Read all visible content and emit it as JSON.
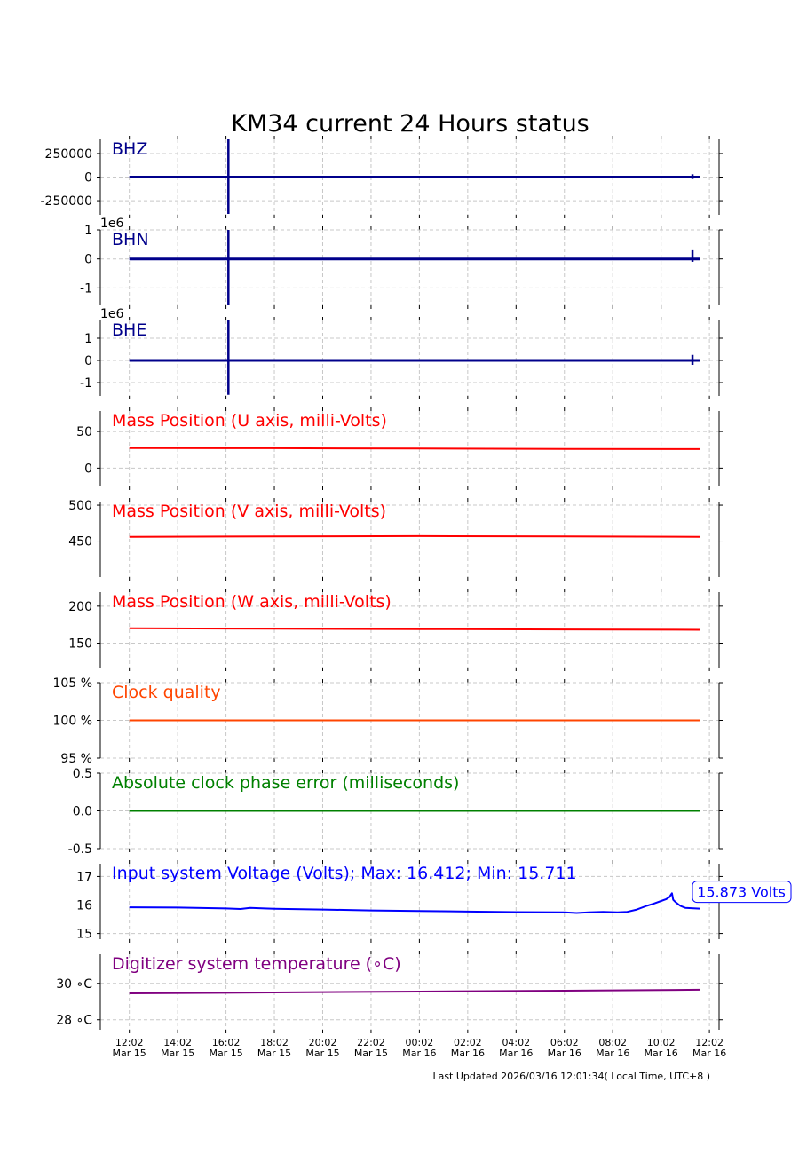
{
  "chart_data": {
    "type": "line",
    "title": "KM34 current 24 Hours status",
    "x_tick_labels": [
      [
        "12:02",
        "Mar 15"
      ],
      [
        "14:02",
        "Mar 15"
      ],
      [
        "16:02",
        "Mar 15"
      ],
      [
        "18:02",
        "Mar 15"
      ],
      [
        "20:02",
        "Mar 15"
      ],
      [
        "22:02",
        "Mar 15"
      ],
      [
        "00:02",
        "Mar 16"
      ],
      [
        "02:02",
        "Mar 16"
      ],
      [
        "04:02",
        "Mar 16"
      ],
      [
        "06:02",
        "Mar 16"
      ],
      [
        "08:02",
        "Mar 16"
      ],
      [
        "10:02",
        "Mar 16"
      ],
      [
        "12:02",
        "Mar 16"
      ]
    ],
    "x_range_hours": [
      -1.2,
      24.4
    ],
    "x_data_end_hours": 23.6,
    "panels": [
      {
        "label": "BHZ",
        "color": "#00008b",
        "ylim": [
          -400000,
          400000
        ],
        "yticks": [
          250000,
          0,
          -250000
        ],
        "ytick_labels": [
          "250000",
          "0",
          "-250000"
        ],
        "offset_text": "",
        "baseline": 0,
        "spikes": [
          {
            "t": 4.1,
            "min": -390000,
            "max": 400000
          },
          {
            "t": 23.3,
            "min": -20000,
            "max": 30000
          }
        ]
      },
      {
        "label": "BHN",
        "color": "#00008b",
        "ylim": [
          -1.6,
          1.0
        ],
        "yticks": [
          1,
          0,
          -1
        ],
        "ytick_labels": [
          "1",
          "0",
          "-1"
        ],
        "offset_text": "1e6",
        "baseline": 0,
        "spikes": [
          {
            "t": 4.1,
            "min": -1.6,
            "max": 1.0
          },
          {
            "t": 23.3,
            "min": -0.1,
            "max": 0.3
          }
        ]
      },
      {
        "label": "BHE",
        "color": "#00008b",
        "ylim": [
          -1.6,
          1.8
        ],
        "yticks": [
          1,
          0,
          -1
        ],
        "ytick_labels": [
          "1",
          "0",
          "-1"
        ],
        "offset_text": "1e6",
        "baseline": 0,
        "spikes": [
          {
            "t": 4.1,
            "min": -1.55,
            "max": 1.8
          },
          {
            "t": 23.3,
            "min": -0.2,
            "max": 0.25
          }
        ]
      },
      {
        "label": "Mass Position (U axis, milli-Volts)",
        "color": "#ff0000",
        "ylim": [
          -25,
          78
        ],
        "yticks": [
          50,
          0
        ],
        "ytick_labels": [
          "50",
          "0"
        ],
        "offset_text": "",
        "series": [
          [
            0,
            27.5
          ],
          [
            6,
            27.2
          ],
          [
            12,
            26.8
          ],
          [
            18,
            26.3
          ],
          [
            23.6,
            26.0
          ]
        ]
      },
      {
        "label": "Mass Position (V axis, milli-Volts)",
        "color": "#ff0000",
        "ylim": [
          400,
          505
        ],
        "yticks": [
          500,
          450
        ],
        "ytick_labels": [
          "500",
          "450"
        ],
        "offset_text": "",
        "series": [
          [
            0,
            456
          ],
          [
            6,
            456.5
          ],
          [
            12,
            457
          ],
          [
            18,
            456.5
          ],
          [
            23.6,
            456
          ]
        ]
      },
      {
        "label": "Mass Position (W axis, milli-Volts)",
        "color": "#ff0000",
        "ylim": [
          117,
          219
        ],
        "yticks": [
          200,
          150
        ],
        "ytick_labels": [
          "200",
          "150"
        ],
        "offset_text": "",
        "series": [
          [
            0,
            170
          ],
          [
            6,
            169.5
          ],
          [
            12,
            169
          ],
          [
            18,
            168.5
          ],
          [
            23.6,
            168
          ]
        ]
      },
      {
        "label": "Clock quality",
        "color": "#ff4500",
        "ylim": [
          95,
          105
        ],
        "yticks": [
          105,
          100,
          95
        ],
        "ytick_labels": [
          "105 %",
          "100 %",
          "95 %"
        ],
        "offset_text": "",
        "series": [
          [
            0,
            100
          ],
          [
            23.6,
            100
          ]
        ]
      },
      {
        "label": "Absolute clock phase error (milliseconds)",
        "color": "#008000",
        "ylim": [
          -0.5,
          0.5
        ],
        "yticks": [
          0.5,
          0.0,
          -0.5
        ],
        "ytick_labels": [
          "0.5",
          "0.0",
          "-0.5"
        ],
        "offset_text": "",
        "series": [
          [
            0,
            0
          ],
          [
            23.6,
            0
          ]
        ]
      },
      {
        "label": "Input system Voltage (Volts);    Max: 16.412; Min: 15.711",
        "color": "#0000ff",
        "ylim": [
          14.8,
          17.45
        ],
        "yticks": [
          17,
          16,
          15
        ],
        "ytick_labels": [
          "17",
          "16",
          "15"
        ],
        "offset_text": "",
        "annotation": "15.873 Volts",
        "series": [
          [
            0,
            15.92
          ],
          [
            2,
            15.91
          ],
          [
            4,
            15.88
          ],
          [
            4.6,
            15.86
          ],
          [
            5,
            15.9
          ],
          [
            5.6,
            15.88
          ],
          [
            6,
            15.87
          ],
          [
            8,
            15.84
          ],
          [
            10,
            15.81
          ],
          [
            12,
            15.79
          ],
          [
            14,
            15.77
          ],
          [
            16,
            15.75
          ],
          [
            18,
            15.74
          ],
          [
            18.5,
            15.72
          ],
          [
            19,
            15.74
          ],
          [
            19.6,
            15.76
          ],
          [
            20.2,
            15.74
          ],
          [
            20.6,
            15.76
          ],
          [
            21,
            15.84
          ],
          [
            21.4,
            15.97
          ],
          [
            21.7,
            16.05
          ],
          [
            22,
            16.14
          ],
          [
            22.2,
            16.2
          ],
          [
            22.35,
            16.28
          ],
          [
            22.4,
            16.35
          ],
          [
            22.45,
            16.412
          ],
          [
            22.5,
            16.18
          ],
          [
            22.6,
            16.1
          ],
          [
            22.8,
            15.97
          ],
          [
            23.0,
            15.9
          ],
          [
            23.6,
            15.873
          ]
        ]
      },
      {
        "label": "Digitizer system temperature (∘C)",
        "color": "#800080",
        "ylim": [
          27.45,
          31.6
        ],
        "yticks": [
          30,
          28
        ],
        "ytick_labels": [
          "30 ∘C",
          "28 ∘C"
        ],
        "offset_text": "",
        "series": [
          [
            0,
            29.45
          ],
          [
            6,
            29.5
          ],
          [
            12,
            29.55
          ],
          [
            18,
            29.6
          ],
          [
            23.6,
            29.65
          ]
        ]
      }
    ],
    "footer": "Last Updated 2026/03/16 12:01:34( Local Time, UTC+8 )",
    "grid": true
  }
}
